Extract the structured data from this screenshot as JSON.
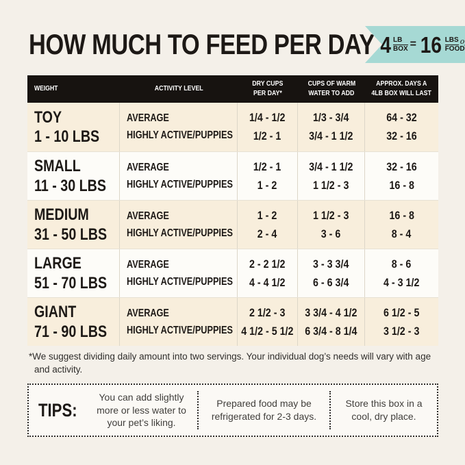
{
  "title": "HOW MUCH TO FEED PER DAY",
  "badge": {
    "color": "#a6d9d4",
    "qty1": "4",
    "frac1_top": "LB",
    "frac1_bottom": "BOX",
    "equals": "=",
    "qty2": "16",
    "frac2_top": "LBS",
    "frac2_of": "of",
    "frac2_bottom": "FOOD!"
  },
  "table": {
    "columns": [
      {
        "line1": "WEIGHT",
        "line2": ""
      },
      {
        "line1": "ACTIVITY LEVEL",
        "line2": ""
      },
      {
        "line1": "DRY CUPS",
        "line2": "PER DAY*"
      },
      {
        "line1": "CUPS OF WARM",
        "line2": "WATER TO ADD"
      },
      {
        "line1": "APPROX. DAYS A",
        "line2": "4LB BOX WILL LAST"
      }
    ],
    "rows": [
      {
        "weight": "TOY",
        "range": "1 - 10 LBS",
        "activity": [
          "AVERAGE",
          "HIGHLY ACTIVE/PUPPIES"
        ],
        "dry_cups": [
          "1/4 - 1/2",
          "1/2 - 1"
        ],
        "water": [
          "1/3 - 3/4",
          "3/4 - 1 1/2"
        ],
        "days": [
          "64 - 32",
          "32 - 16"
        ]
      },
      {
        "weight": "SMALL",
        "range": "11 - 30 LBS",
        "activity": [
          "AVERAGE",
          "HIGHLY ACTIVE/PUPPIES"
        ],
        "dry_cups": [
          "1/2 - 1",
          "1 - 2"
        ],
        "water": [
          "3/4 - 1 1/2",
          "1 1/2 - 3"
        ],
        "days": [
          "32 - 16",
          "16 - 8"
        ]
      },
      {
        "weight": "MEDIUM",
        "range": "31 - 50 LBS",
        "activity": [
          "AVERAGE",
          "HIGHLY ACTIVE/PUPPIES"
        ],
        "dry_cups": [
          "1 - 2",
          "2 - 4"
        ],
        "water": [
          "1 1/2 - 3",
          "3 - 6"
        ],
        "days": [
          "16 - 8",
          "8 - 4"
        ]
      },
      {
        "weight": "LARGE",
        "range": "51 - 70 LBS",
        "activity": [
          "AVERAGE",
          "HIGHLY ACTIVE/PUPPIES"
        ],
        "dry_cups": [
          "2 - 2 1/2",
          "4 - 4 1/2"
        ],
        "water": [
          "3 - 3 3/4",
          "6 - 6 3/4"
        ],
        "days": [
          "8 - 6",
          "4 - 3 1/2"
        ]
      },
      {
        "weight": "GIANT",
        "range": "71 - 90 LBS",
        "activity": [
          "AVERAGE",
          "HIGHLY ACTIVE/PUPPIES"
        ],
        "dry_cups": [
          "2 1/2 - 3",
          "4 1/2 - 5 1/2"
        ],
        "water": [
          "3 3/4 - 4 1/2",
          "6 3/4 - 8 1/4"
        ],
        "days": [
          "6 1/2 - 5",
          "3 1/2 - 3"
        ]
      }
    ]
  },
  "footnote": "*We suggest dividing daily amount into two servings. Your individual dog’s needs will vary with age and activity.",
  "tips": {
    "label": "TIPS:",
    "items": [
      "You can add slightly more or less water to your pet’s liking.",
      "Prepared food may be refrigerated for 2-3 days.",
      "Store this box in a cool, dry place."
    ]
  },
  "colors": {
    "background": "#f4f0e9",
    "header_bar": "#171310",
    "row_cream": "#f8eedc",
    "row_white": "#fdfcf8",
    "badge_teal": "#a6d9d4"
  }
}
